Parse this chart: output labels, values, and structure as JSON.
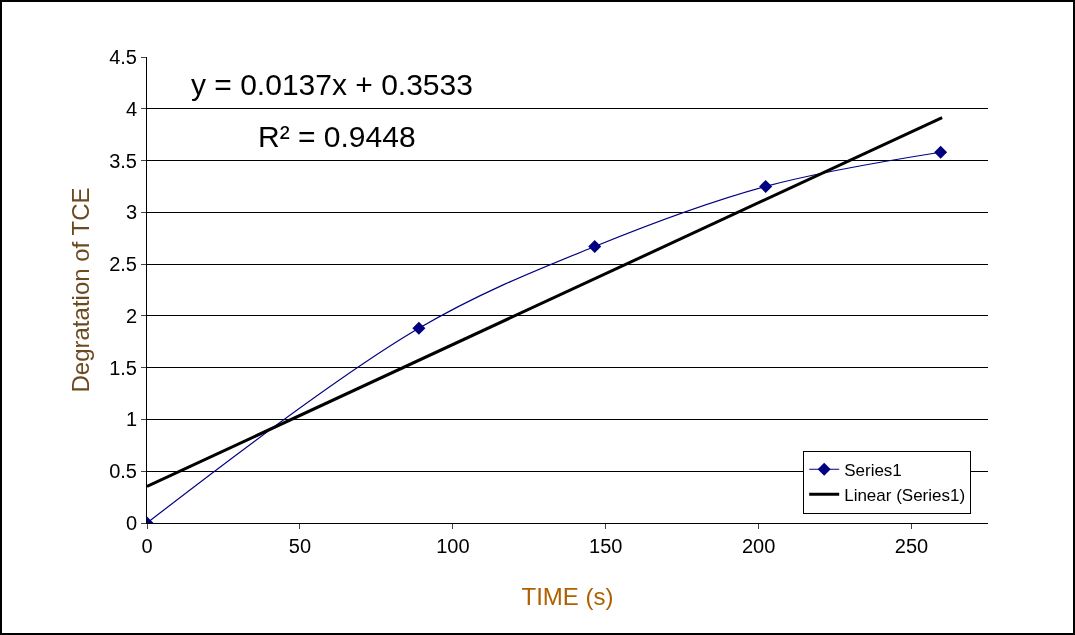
{
  "chart_data": {
    "type": "line",
    "xlabel": "TIME (s)",
    "ylabel": "Degratation of TCE",
    "x": [
      0,
      88.9,
      146.4,
      202.3,
      259.5
    ],
    "series": [
      {
        "name": "Series1",
        "color": "#000080",
        "values": [
          0,
          1.88,
          2.67,
          3.25,
          3.58
        ],
        "marker": "diamond"
      },
      {
        "name": "Linear (Series1)",
        "color": "#000000",
        "type": "line",
        "x": [
          0,
          260
        ],
        "values": [
          0.3533,
          3.915
        ],
        "marker": "none"
      }
    ],
    "xlim": [
      0,
      275
    ],
    "xticks": [
      0,
      50,
      100,
      150,
      200,
      250
    ],
    "ylim": [
      0,
      4.5
    ],
    "yticks": [
      0,
      0.5,
      1,
      1.5,
      2,
      2.5,
      3,
      3.5,
      4,
      4.5
    ],
    "grid": "y",
    "legend": "bottom right",
    "annotations": [
      "y = 0.0137x + 0.3533",
      "R² = 0.9448"
    ]
  }
}
